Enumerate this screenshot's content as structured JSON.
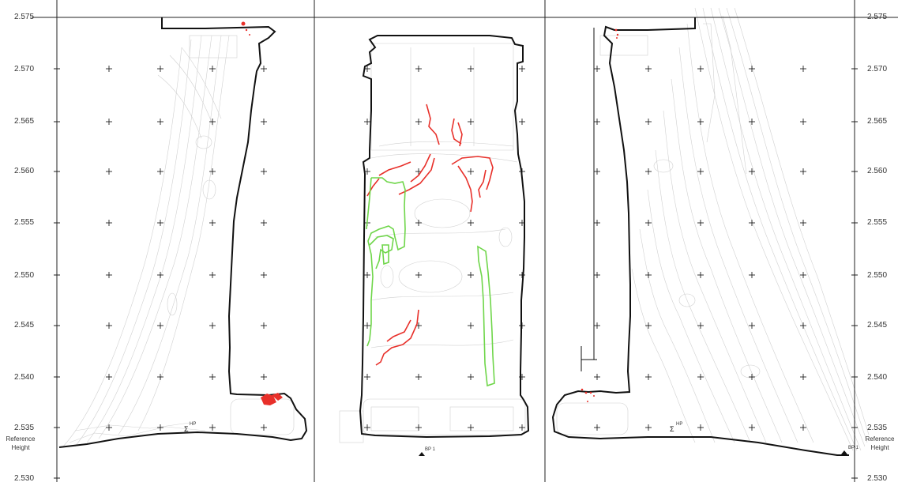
{
  "axis": {
    "ticks": [
      "2.575",
      "2.570",
      "2.565",
      "2.560",
      "2.555",
      "2.550",
      "2.545",
      "2.540",
      "2.535",
      "2.530"
    ]
  },
  "reference": {
    "line1": "Reference",
    "line2": "Height"
  },
  "points": {
    "hp_left": "HP",
    "hp_right": "HP",
    "bp_center": "BP 1",
    "bp_right": "BP 1"
  },
  "colors": {
    "outline": "#111111",
    "contours": "#c8c8c8",
    "red_features": "#e8302a",
    "green_features": "#6fd64a",
    "grid": "#222222"
  }
}
